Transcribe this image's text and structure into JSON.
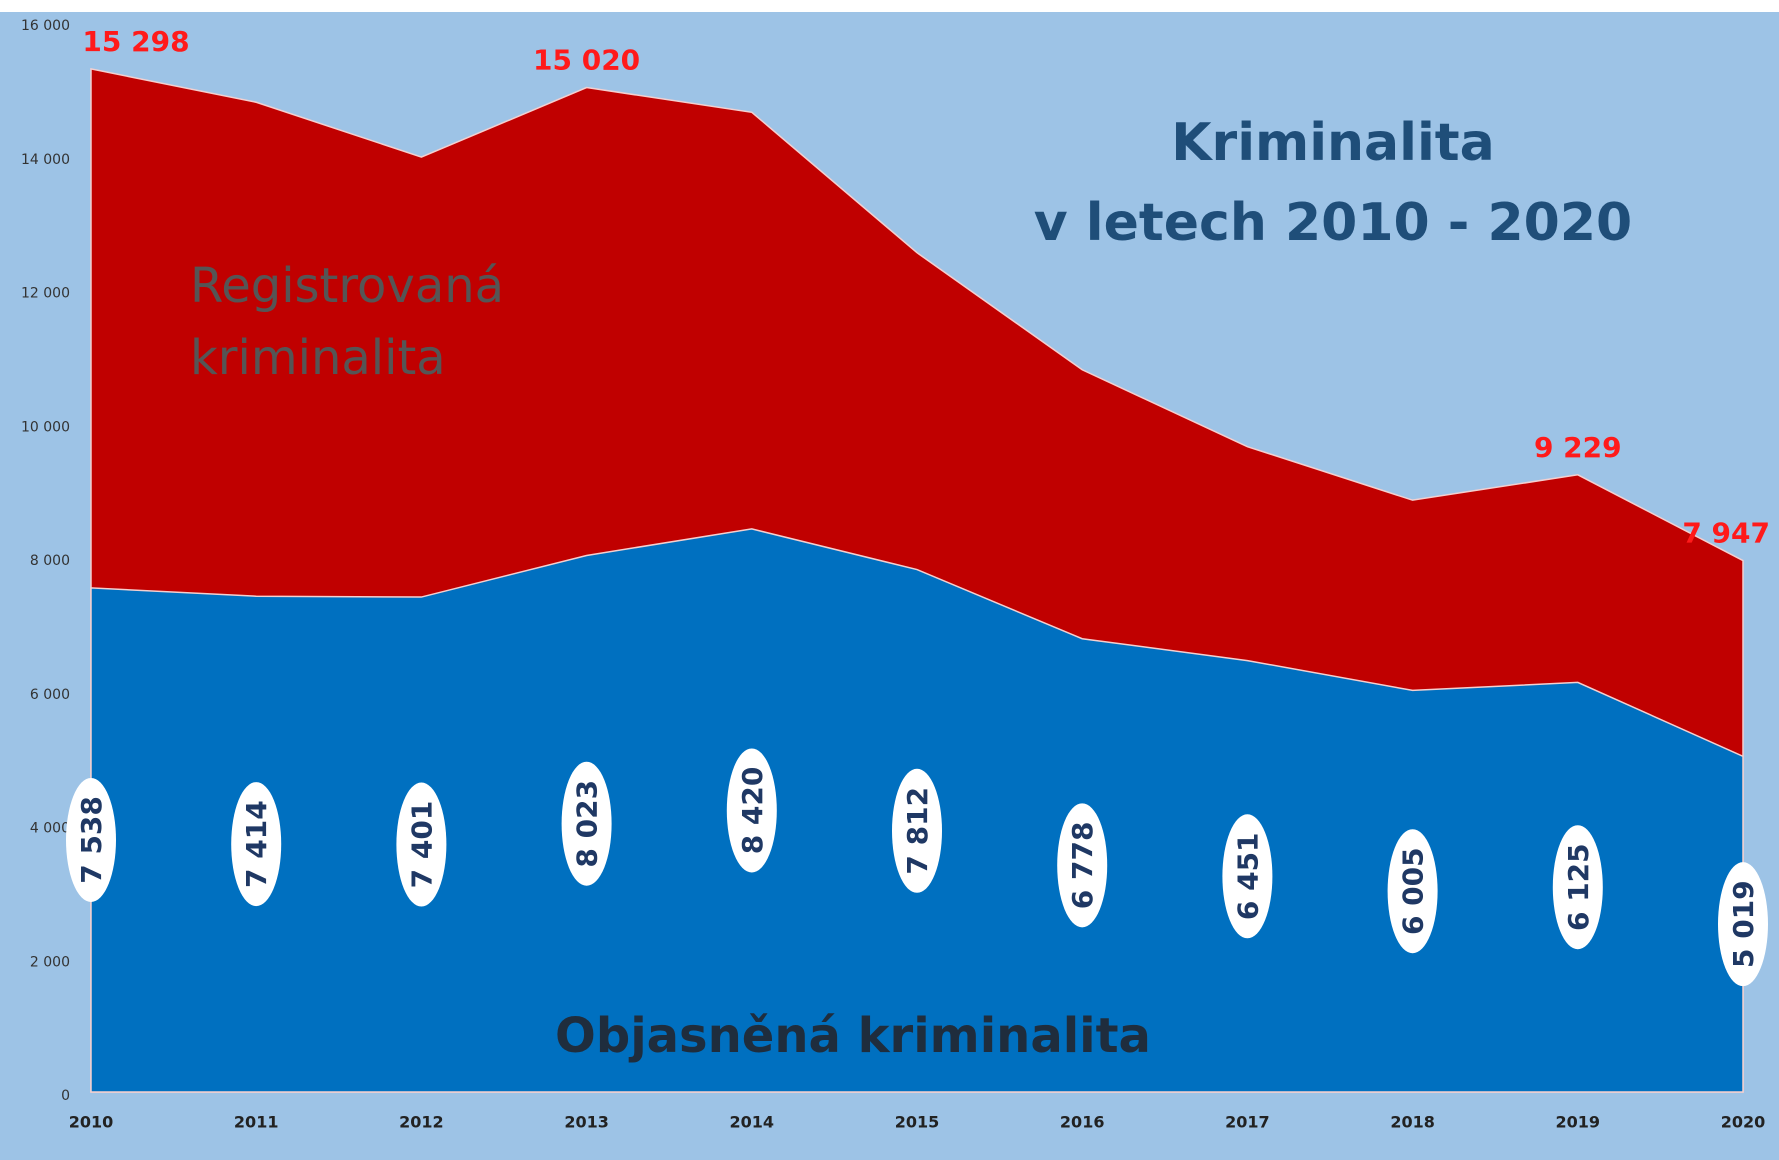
{
  "chart_data": {
    "type": "area",
    "title": "Kriminalita",
    "subtitle": "v letech 2010 - 2020",
    "categories": [
      "2010",
      "2011",
      "2012",
      "2013",
      "2014",
      "2015",
      "2016",
      "2017",
      "2018",
      "2019",
      "2020"
    ],
    "series": [
      {
        "name": "Registrovaná kriminalita",
        "color": "#c00000",
        "values": [
          15298,
          14800,
          13980,
          15020,
          14650,
          12550,
          10800,
          9650,
          8850,
          9229,
          7947
        ],
        "value_labels": [
          "15 298",
          null,
          null,
          "15 020",
          null,
          null,
          null,
          null,
          null,
          "9 229",
          "7 947"
        ]
      },
      {
        "name": "Objasněná kriminalita",
        "color": "#0070c0",
        "values": [
          7538,
          7414,
          7401,
          8023,
          8420,
          7812,
          6778,
          6451,
          6005,
          6125,
          5019
        ],
        "value_labels": [
          "7 538",
          "7 414",
          "7 401",
          "8 023",
          "8 420",
          "7 812",
          "6 778",
          "6 451",
          "6 005",
          "6 125",
          "5 019"
        ]
      }
    ],
    "ylim": [
      0,
      16000
    ],
    "yticks": [
      0,
      {
        "value": 2000,
        "label": "2 000"
      },
      {
        "value": 4000,
        "label": "4 000"
      },
      {
        "value": 6000,
        "label": "6 000"
      },
      {
        "value": 8000,
        "label": "8 000"
      },
      {
        "value": 10000,
        "label": "10 000"
      },
      {
        "value": 12000,
        "label": "12 000"
      },
      {
        "value": 14000,
        "label": "14 000"
      },
      {
        "value": 16000,
        "label": "16 000"
      }
    ],
    "grid": false
  }
}
